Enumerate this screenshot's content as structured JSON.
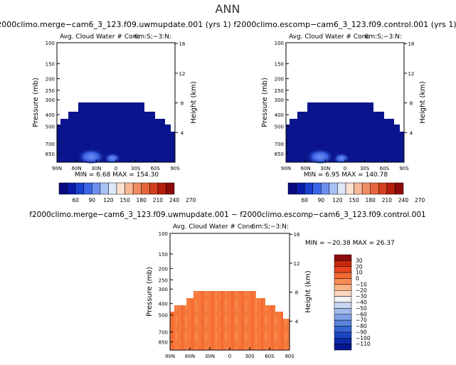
{
  "page_title": "ANN",
  "panels": [
    {
      "title": "f2000climo.merge−cam6_3_123.f09.uwmupdate.001 (yrs 1)",
      "subtitle": "Avg. Cloud Water # Conc",
      "units": "6m:S;−3:N:",
      "stats": "MIN =    6.68  MAX =  154.30"
    },
    {
      "title": "f2000climo.escomp−cam6_3_123.f09.control.001 (yrs 1)",
      "subtitle": "Avg. Cloud Water # Conc",
      "units": "6m:S;−3:N:",
      "stats": "MIN =    6.95  MAX =  140.78"
    }
  ],
  "diff_panel": {
    "title": "f2000climo.merge−cam6_3_123.f09.uwmupdate.001 − f2000climo.escomp−cam6_3_123.f09.control.001",
    "subtitle": "Avg. Cloud Water # Conc",
    "units": "6m:S;−3:N:",
    "stats": "MIN =  −20.38   MAX =   26.37"
  },
  "chart_data": [
    {
      "type": "heatmap",
      "title": "f2000climo.merge−cam6_3_123.f09.uwmupdate.001 (yrs 1)",
      "ylabel": "Pressure (mb)",
      "y2label": "Height (km)",
      "x_ticks": [
        "90N",
        "60N",
        "30N",
        "0",
        "30S",
        "60S",
        "90S"
      ],
      "y_ticks": [
        100,
        150,
        200,
        250,
        300,
        400,
        500,
        700,
        850
      ],
      "y2_ticks": [
        4,
        8,
        12,
        16
      ],
      "ylim": [
        1000,
        100
      ],
      "min": 6.68,
      "max": 154.3,
      "colorbar_levels": [
        60,
        90,
        120,
        150,
        180,
        210,
        240,
        270
      ]
    },
    {
      "type": "heatmap",
      "title": "f2000climo.escomp−cam6_3_123.f09.control.001 (yrs 1)",
      "ylabel": "Pressure (mb)",
      "y2label": "Height (km)",
      "x_ticks": [
        "90N",
        "60N",
        "30N",
        "0",
        "30S",
        "60S",
        "90S"
      ],
      "y_ticks": [
        100,
        150,
        200,
        250,
        300,
        400,
        500,
        700,
        850
      ],
      "y2_ticks": [
        4,
        8,
        12,
        16
      ],
      "ylim": [
        1000,
        100
      ],
      "min": 6.95,
      "max": 140.78,
      "colorbar_levels": [
        60,
        90,
        120,
        150,
        180,
        210,
        240,
        270
      ]
    },
    {
      "type": "heatmap",
      "title": "f2000climo.merge−cam6_3_123.f09.uwmupdate.001 − f2000climo.escomp−cam6_3_123.f09.control.001",
      "ylabel": "Pressure (mb)",
      "y2label": "Height (km)",
      "x_ticks": [
        "90N",
        "60N",
        "30N",
        "0",
        "30S",
        "60S",
        "90S"
      ],
      "y_ticks": [
        100,
        150,
        200,
        250,
        300,
        400,
        500,
        700,
        850
      ],
      "y2_ticks": [
        4,
        8,
        12,
        16
      ],
      "ylim": [
        1000,
        100
      ],
      "min": -20.38,
      "max": 26.37,
      "colorbar_levels": [
        30,
        20,
        10,
        0,
        -10,
        -20,
        -30,
        -40,
        -50,
        -60,
        -70,
        -80,
        -90,
        -100,
        -110
      ]
    }
  ],
  "colors": {
    "top_colorbar": [
      "#0a0a80",
      "#0a1aa8",
      "#1a3fcf",
      "#3c64e6",
      "#6e8ff0",
      "#a8c0f5",
      "#dde8fa",
      "#fde2d2",
      "#f8b898",
      "#f08c64",
      "#e6643c",
      "#d2401e",
      "#b41e0a",
      "#8c0a0a"
    ],
    "diff_colorbar": [
      "#8c0a0a",
      "#c8280c",
      "#e6461e",
      "#f46a32",
      "#f98c55",
      "#fbb285",
      "#fcd6bc",
      "#f0f0f5",
      "#c8d6f2",
      "#a2bbeb",
      "#7d9fe3",
      "#5a83dc",
      "#3566d3",
      "#1a46c2",
      "#0b2aa8",
      "#061690"
    ],
    "field_dark": "#0a148c",
    "field_diff": "#f6783a"
  }
}
